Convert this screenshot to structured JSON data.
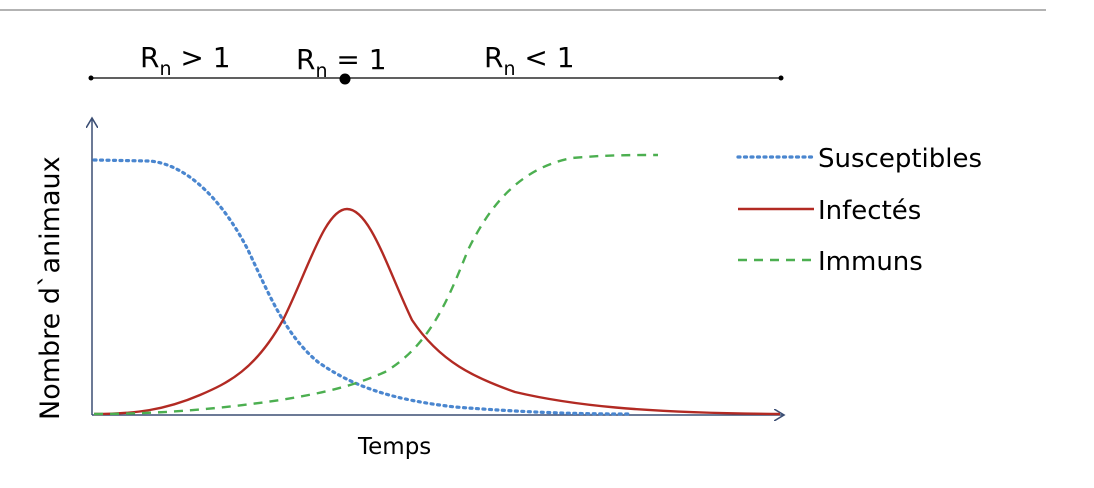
{
  "phases": [
    {
      "symbol": "R",
      "sub": "n",
      "relation": " > 1"
    },
    {
      "symbol": "R",
      "sub": "n",
      "relation": " = 1"
    },
    {
      "symbol": "R",
      "sub": "n",
      "relation": " < 1"
    }
  ],
  "axes": {
    "ylabel": "Nombre  d`animaux",
    "xlabel": "Temps"
  },
  "legend": [
    {
      "label": "Susceptibles",
      "color": "#4a86cf",
      "style": "dotted"
    },
    {
      "label": "Infectés",
      "color": "#b22a23",
      "style": "solid"
    },
    {
      "label": "Immuns",
      "color": "#4caf50",
      "style": "dashed"
    }
  ],
  "colors": {
    "axis": "#3b4e74",
    "timeline": "#000000",
    "top_rule": "#9a9a9a"
  }
}
